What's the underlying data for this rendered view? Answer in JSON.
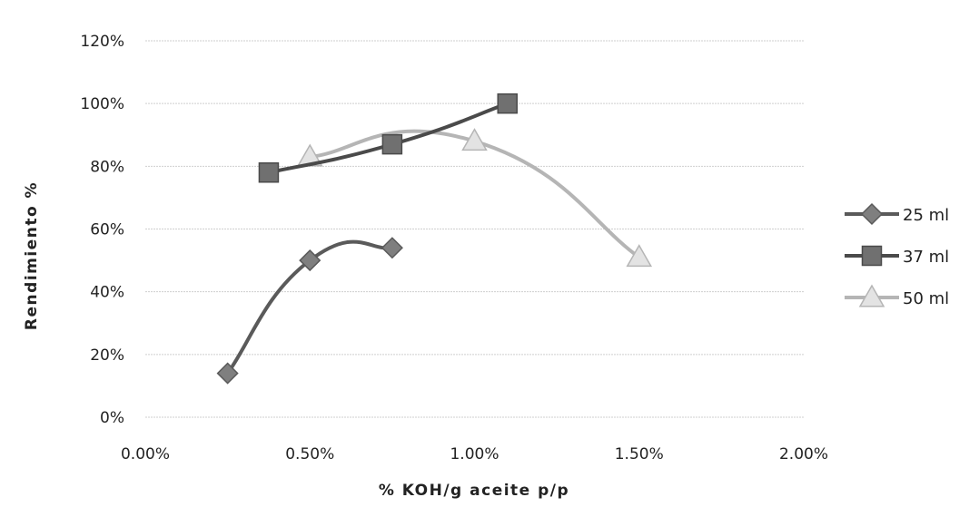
{
  "chart_data": {
    "type": "scatter",
    "title": "",
    "xlabel": "% KOH/g aceite p/p",
    "ylabel": "Rendimiento %",
    "xlim": [
      0.0,
      0.02
    ],
    "ylim": [
      0.0,
      1.2
    ],
    "x_ticks": [
      "0.00%",
      "0.50%",
      "1.00%",
      "1.50%",
      "2.00%"
    ],
    "y_ticks": [
      "0%",
      "20%",
      "40%",
      "60%",
      "80%",
      "100%",
      "120%"
    ],
    "grid": "horizontal",
    "legend_position": "right",
    "series": [
      {
        "name": "25 ml",
        "marker": "diamond",
        "color": "#7f7f7f",
        "line_color": "#5a5a5a",
        "x": [
          0.0025,
          0.005,
          0.0075
        ],
        "y": [
          0.14,
          0.5,
          0.54
        ]
      },
      {
        "name": "37 ml",
        "marker": "square",
        "color": "#707070",
        "line_color": "#4a4a4a",
        "x": [
          0.00375,
          0.0075,
          0.011
        ],
        "y": [
          0.78,
          0.87,
          1.0
        ]
      },
      {
        "name": "50 ml",
        "marker": "triangle",
        "color": "#e3e3e3",
        "line_color": "#b5b5b5",
        "x": [
          0.005,
          0.01,
          0.015
        ],
        "y": [
          0.83,
          0.88,
          0.51
        ]
      }
    ]
  }
}
